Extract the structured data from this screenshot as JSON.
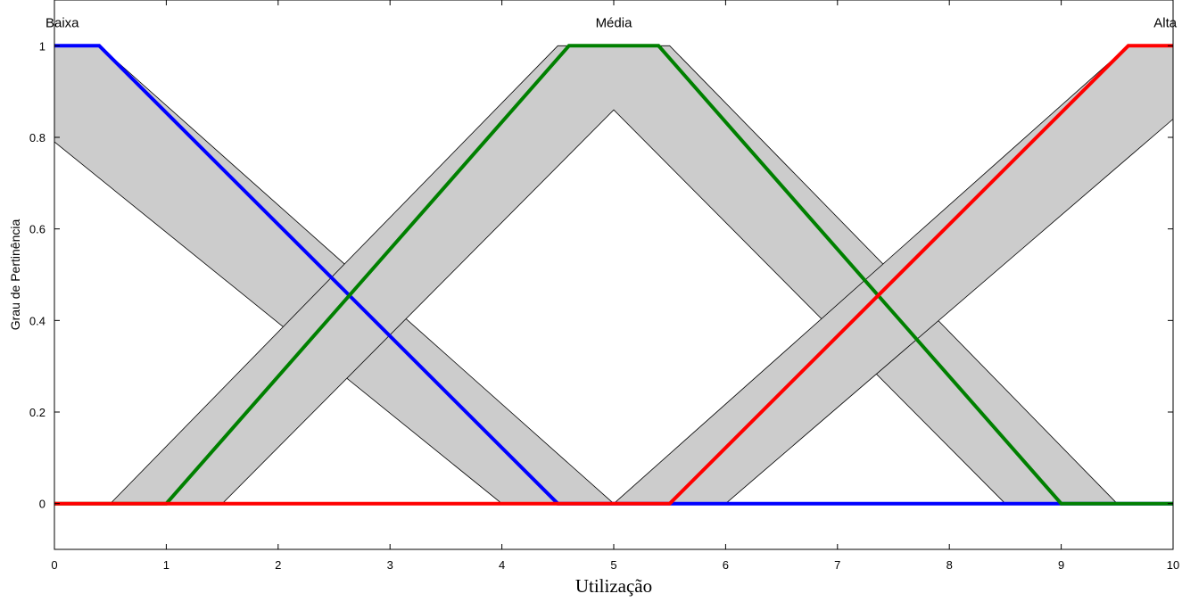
{
  "chart_data": {
    "type": "line",
    "title": "",
    "xlabel": "Utilização",
    "ylabel": "Grau de Pertinência",
    "xlim": [
      0,
      10
    ],
    "ylim": [
      -0.1,
      1.1
    ],
    "x_ticks": [
      0,
      1,
      2,
      3,
      4,
      5,
      6,
      7,
      8,
      9,
      10
    ],
    "x_tick_labels": [
      "0",
      "1",
      "2",
      "3",
      "4",
      "5",
      "6",
      "7",
      "8",
      "9",
      "10"
    ],
    "y_ticks": [
      0,
      0.2,
      0.4,
      0.6,
      0.8,
      1
    ],
    "y_tick_labels": [
      "0",
      "0.2",
      "0.4",
      "0.6",
      "0.8",
      "1"
    ],
    "grid": false,
    "series": [
      {
        "name": "Baixa",
        "color": "#0000ff",
        "x": [
          0,
          0.4,
          4.5,
          10
        ],
        "y": [
          1,
          1,
          0,
          0
        ],
        "upper": {
          "x": [
            0,
            0.4,
            5,
            10
          ],
          "y": [
            1,
            1,
            0,
            0
          ]
        },
        "lower": {
          "x": [
            0,
            4,
            10
          ],
          "y": [
            0.79,
            0,
            0
          ]
        }
      },
      {
        "name": "Média",
        "color": "#008000",
        "x": [
          0,
          1,
          4.6,
          5.4,
          9,
          10
        ],
        "y": [
          0,
          0,
          1,
          1,
          0,
          0
        ],
        "upper": {
          "x": [
            0,
            0.5,
            4.5,
            5.5,
            9.5,
            10
          ],
          "y": [
            0,
            0,
            1,
            1,
            0,
            0
          ]
        },
        "lower": {
          "x": [
            0,
            1.5,
            5,
            8.5,
            10
          ],
          "y": [
            0,
            0,
            0.86,
            0,
            0
          ]
        }
      },
      {
        "name": "Alta",
        "color": "#ff0000",
        "x": [
          0,
          5.5,
          9.6,
          10
        ],
        "y": [
          0,
          0,
          1,
          1
        ],
        "upper": {
          "x": [
            0,
            5,
            9.6,
            10
          ],
          "y": [
            0,
            0,
            1,
            1
          ]
        },
        "lower": {
          "x": [
            0,
            6,
            10
          ],
          "y": [
            0,
            0,
            0.84
          ]
        }
      }
    ],
    "band_color": "#cccccc",
    "annotations": [
      {
        "text": "Baixa",
        "x": 0.07,
        "y": 1.05
      },
      {
        "text": "Média",
        "x": 5.0,
        "y": 1.05
      },
      {
        "text": "Alta",
        "x": 9.93,
        "y": 1.05
      }
    ]
  }
}
